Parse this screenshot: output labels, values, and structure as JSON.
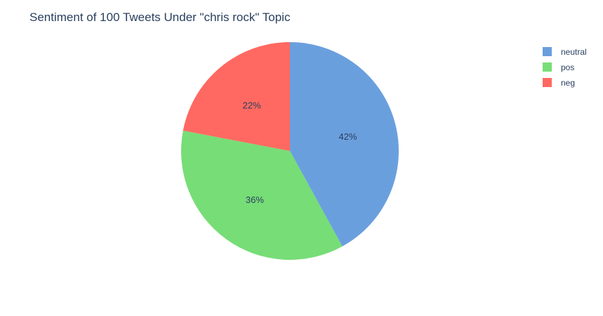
{
  "chart_data": {
    "type": "pie",
    "title": "Sentiment of 100 Tweets Under \"chris rock\" Topic",
    "labels": [
      "neutral",
      "pos",
      "neg"
    ],
    "values": [
      42,
      36,
      22
    ],
    "value_labels": [
      "42%",
      "36%",
      "22%"
    ],
    "colors": [
      "#6a9fde",
      "#77dd77",
      "#ff6961"
    ],
    "start_angle": "12 o'clock, clockwise",
    "legend_placement": "top-right",
    "legend_order": [
      "neutral",
      "pos",
      "neg"
    ]
  }
}
